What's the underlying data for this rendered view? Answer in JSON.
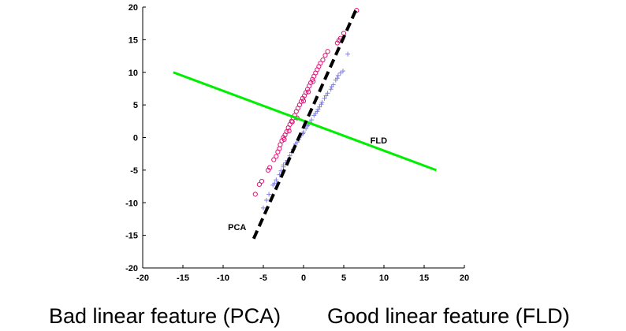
{
  "chart_data": {
    "type": "scatter",
    "xlim": [
      -20,
      20
    ],
    "ylim": [
      -20,
      20
    ],
    "xticks": [
      -20,
      -15,
      -10,
      -5,
      0,
      5,
      10,
      15,
      20
    ],
    "yticks": [
      -20,
      -15,
      -10,
      -5,
      0,
      5,
      10,
      15,
      20
    ],
    "grid": false,
    "series": [
      {
        "marker": "circle",
        "color": "#e0157a",
        "points": [
          [
            -6.0,
            -8.7
          ],
          [
            -5.5,
            -7.2
          ],
          [
            -5.2,
            -6.7
          ],
          [
            -4.4,
            -5.0
          ],
          [
            -4.2,
            -4.6
          ],
          [
            -3.7,
            -3.4
          ],
          [
            -3.4,
            -2.9
          ],
          [
            -3.2,
            -2.2
          ],
          [
            -3.0,
            -1.7
          ],
          [
            -2.9,
            -1.1
          ],
          [
            -2.7,
            -0.5
          ],
          [
            -2.5,
            0.0
          ],
          [
            -2.3,
            0.4
          ],
          [
            -2.1,
            0.9
          ],
          [
            -1.9,
            1.5
          ],
          [
            -1.7,
            2.0
          ],
          [
            -1.5,
            2.5
          ],
          [
            -1.3,
            3.0
          ],
          [
            -1.1,
            3.4
          ],
          [
            -0.9,
            4.0
          ],
          [
            -0.7,
            4.5
          ],
          [
            -0.5,
            5.0
          ],
          [
            -0.3,
            5.5
          ],
          [
            -0.1,
            6.0
          ],
          [
            0.1,
            6.4
          ],
          [
            0.3,
            6.9
          ],
          [
            0.5,
            7.4
          ],
          [
            0.7,
            7.9
          ],
          [
            0.9,
            8.4
          ],
          [
            1.1,
            8.9
          ],
          [
            1.3,
            9.4
          ],
          [
            1.5,
            9.9
          ],
          [
            1.7,
            10.4
          ],
          [
            1.9,
            10.9
          ],
          [
            2.1,
            11.4
          ],
          [
            2.4,
            11.9
          ],
          [
            2.7,
            12.6
          ],
          [
            3.0,
            13.2
          ],
          [
            4.2,
            14.5
          ],
          [
            4.4,
            14.9
          ],
          [
            4.6,
            15.2
          ],
          [
            5.0,
            16.0
          ],
          [
            6.6,
            19.5
          ],
          [
            -1.8,
            1.0
          ],
          [
            -0.8,
            3.0
          ],
          [
            0.0,
            5.6
          ],
          [
            0.6,
            7.0
          ],
          [
            1.2,
            8.6
          ],
          [
            -2.4,
            -0.3
          ],
          [
            -1.4,
            2.4
          ]
        ]
      },
      {
        "marker": "plus",
        "color": "#8080e0",
        "points": [
          [
            -5.0,
            -10.8
          ],
          [
            -4.3,
            -8.7
          ],
          [
            -3.8,
            -7.3
          ],
          [
            -3.4,
            -6.5
          ],
          [
            -3.0,
            -5.7
          ],
          [
            -2.5,
            -4.5
          ],
          [
            -2.0,
            -3.5
          ],
          [
            -1.7,
            -2.8
          ],
          [
            -1.3,
            -1.8
          ],
          [
            -1.0,
            -1.0
          ],
          [
            -0.6,
            -0.3
          ],
          [
            -0.3,
            0.3
          ],
          [
            0.0,
            0.8
          ],
          [
            0.3,
            1.4
          ],
          [
            0.6,
            2.0
          ],
          [
            1.0,
            2.7
          ],
          [
            1.3,
            3.4
          ],
          [
            1.7,
            4.0
          ],
          [
            2.0,
            4.7
          ],
          [
            2.3,
            5.4
          ],
          [
            2.6,
            6.0
          ],
          [
            3.0,
            6.8
          ],
          [
            3.4,
            7.4
          ],
          [
            3.7,
            8.1
          ],
          [
            4.0,
            8.8
          ],
          [
            4.3,
            9.5
          ],
          [
            4.6,
            9.9
          ],
          [
            4.9,
            10.2
          ],
          [
            -3.6,
            -7.0
          ],
          [
            -2.8,
            -5.1
          ],
          [
            -2.2,
            -3.9
          ],
          [
            -1.5,
            -2.3
          ],
          [
            -0.8,
            -0.7
          ],
          [
            -0.1,
            0.6
          ],
          [
            0.8,
            2.3
          ],
          [
            1.5,
            3.7
          ],
          [
            2.2,
            5.1
          ],
          [
            2.8,
            6.4
          ],
          [
            3.5,
            7.8
          ],
          [
            4.2,
            9.1
          ],
          [
            5.5,
            12.8
          ],
          [
            -4.6,
            -9.6
          ],
          [
            -2.5,
            -4.2
          ],
          [
            0.5,
            1.8
          ],
          [
            1.8,
            4.3
          ]
        ]
      },
      {
        "type": "line",
        "name": "FLD",
        "color": "#00ee00",
        "style": "solid",
        "x": [
          -16.2,
          16.5
        ],
        "y": [
          10.0,
          -5.0
        ]
      },
      {
        "type": "line",
        "name": "PCA",
        "color": "#000000",
        "style": "dashed",
        "x": [
          -6.2,
          6.6
        ],
        "y": [
          -15.5,
          19.8
        ]
      }
    ]
  },
  "captions": {
    "left": "Bad linear feature (PCA)",
    "right": "Good linear feature (FLD)"
  }
}
